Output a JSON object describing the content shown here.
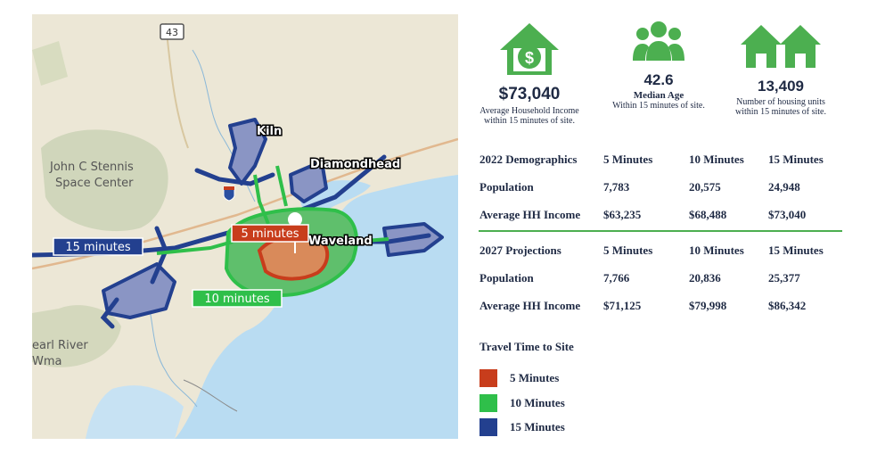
{
  "map": {
    "highway_shield": "43",
    "place_labels": {
      "kiln": "Kiln",
      "diamondhead": "Diamondhead",
      "waveland": "Waveland",
      "stennis": "John C Stennis\nSpace Center",
      "pearl_river": "earl River\nWma"
    },
    "zone_labels": {
      "five": "5 minutes",
      "ten": "10 minutes",
      "fifteen": "15 minutes"
    },
    "colors": {
      "water": "#b9dcf2",
      "land": "#ece7d6",
      "five": "#c83d1c",
      "ten": "#2fbf4a",
      "fifteen": "#23408f"
    }
  },
  "stats": {
    "income": {
      "icon": "house-dollar-icon",
      "value": "$73,040",
      "caption_line1": "Average Household Income",
      "caption_line2": "within 15 minutes of site."
    },
    "age": {
      "icon": "people-group-icon",
      "value": "42.6",
      "label": "Median Age",
      "caption": "Within 15 minutes of site."
    },
    "housing": {
      "icon": "two-houses-icon",
      "value": "13,409",
      "caption_line1": "Number of housing units",
      "caption_line2": "within 15 minutes of site."
    }
  },
  "demographics_2022": {
    "header": [
      "2022 Demographics",
      "5 Minutes",
      "10 Minutes",
      "15 Minutes"
    ],
    "rows": [
      [
        "Population",
        "7,783",
        "20,575",
        "24,948"
      ],
      [
        "Average HH Income",
        "$63,235",
        "$68,488",
        "$73,040"
      ]
    ]
  },
  "projections_2027": {
    "header": [
      "2027 Projections",
      "5 Minutes",
      "10 Minutes",
      "15 Minutes"
    ],
    "rows": [
      [
        "Population",
        "7,766",
        "20,836",
        "25,377"
      ],
      [
        "Average HH Income",
        "$71,125",
        "$79,998",
        "$86,342"
      ]
    ]
  },
  "legend": {
    "title": "Travel Time to Site",
    "items": [
      {
        "label": "5 Minutes",
        "color": "#c83d1c"
      },
      {
        "label": "10 Minutes",
        "color": "#2fbf4a"
      },
      {
        "label": "15 Minutes",
        "color": "#23408f"
      }
    ]
  }
}
